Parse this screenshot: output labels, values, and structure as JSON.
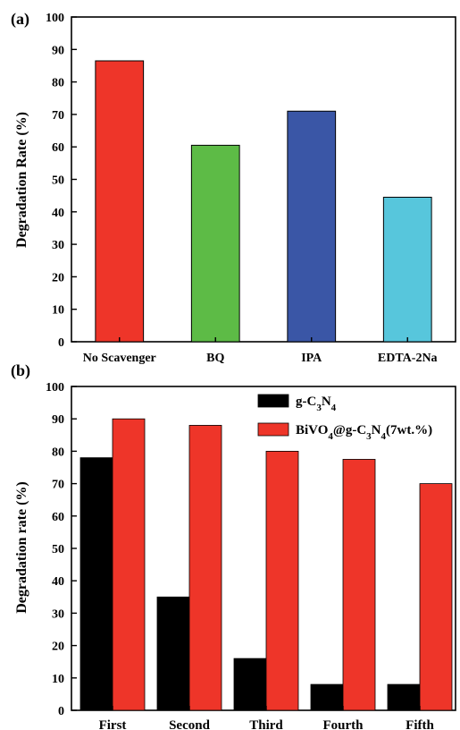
{
  "chart_data": [
    {
      "panel_label": "(a)",
      "type": "bar",
      "categories": [
        "No Scavenger",
        "BQ",
        "IPA",
        "EDTA-2Na"
      ],
      "values": [
        86.5,
        60.5,
        71.0,
        44.5
      ],
      "colors": [
        "#ee3529",
        "#5dbb46",
        "#3a56a6",
        "#57c6dc"
      ],
      "title": "",
      "xlabel": "",
      "ylabel": "Degradation Rate (%)",
      "ylim": [
        0,
        100
      ],
      "yticks": [
        0,
        10,
        20,
        30,
        40,
        50,
        60,
        70,
        80,
        90,
        100
      ],
      "grid": false
    },
    {
      "panel_label": "(b)",
      "type": "bar",
      "categories": [
        "First",
        "Second",
        "Third",
        "Fourth",
        "Fifth"
      ],
      "series": [
        {
          "name": "g-C3N4",
          "name_parts": [
            [
              "g-C",
              ""
            ],
            [
              "3",
              "sub"
            ],
            [
              "N",
              ""
            ],
            [
              "4",
              "sub"
            ]
          ],
          "color": "#000000",
          "values": [
            78,
            35,
            16,
            8,
            8
          ]
        },
        {
          "name": "BiVO4@g-C3N4(7wt.%)",
          "name_parts": [
            [
              "BiVO",
              ""
            ],
            [
              "4",
              "sub"
            ],
            [
              "@g-C",
              ""
            ],
            [
              "3",
              "sub"
            ],
            [
              "N",
              ""
            ],
            [
              "4",
              "sub"
            ],
            [
              "(7wt.%)",
              ""
            ]
          ],
          "color": "#ee3529",
          "values": [
            90,
            88,
            80,
            77.5,
            70
          ]
        }
      ],
      "title": "",
      "xlabel": "",
      "ylabel": "Degradation rate (%)",
      "ylim": [
        0,
        100
      ],
      "yticks": [
        0,
        10,
        20,
        30,
        40,
        50,
        60,
        70,
        80,
        90,
        100
      ],
      "legend_position": "top-right",
      "grid": false
    }
  ]
}
